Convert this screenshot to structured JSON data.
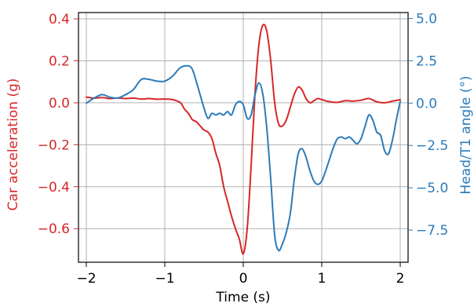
{
  "chart_data": {
    "type": "line",
    "title": "",
    "xlabel": "Time (s)",
    "ylabel_left": "Car acceleration (g)",
    "ylabel_right": "Head/T1 angle (°)",
    "xlim": [
      -2.1,
      2.1
    ],
    "ylim_left": [
      -0.76,
      0.43
    ],
    "ylim_right": [
      -9.4,
      5.35
    ],
    "x_ticks": [
      -2,
      -1,
      0,
      1,
      2
    ],
    "x_tick_labels": [
      "−2",
      "−1",
      "0",
      "1",
      "2"
    ],
    "y_left_ticks": [
      0.4,
      0.2,
      0.0,
      -0.2,
      -0.4,
      -0.6
    ],
    "y_left_tick_labels": [
      "0.4",
      "0.2",
      "0.0",
      "−0.2",
      "−0.4",
      "−0.6"
    ],
    "y_right_ticks": [
      5.0,
      2.5,
      0.0,
      -2.5,
      -5.0,
      -7.5
    ],
    "y_right_tick_labels": [
      "5.0",
      "2.5",
      "0.0",
      "−2.5",
      "−5.0",
      "−7.5"
    ],
    "grid": true,
    "series": [
      {
        "axis": "left",
        "color": "#d62728",
        "points": [
          [
            -2.0,
            0.027
          ],
          [
            -1.9,
            0.022
          ],
          [
            -1.8,
            0.025
          ],
          [
            -1.7,
            0.02
          ],
          [
            -1.6,
            0.023
          ],
          [
            -1.5,
            0.02
          ],
          [
            -1.4,
            0.022
          ],
          [
            -1.3,
            0.018
          ],
          [
            -1.2,
            0.02
          ],
          [
            -1.1,
            0.017
          ],
          [
            -1.0,
            0.018
          ],
          [
            -0.9,
            0.015
          ],
          [
            -0.8,
            0.0
          ],
          [
            -0.75,
            -0.03
          ],
          [
            -0.7,
            -0.05
          ],
          [
            -0.65,
            -0.08
          ],
          [
            -0.6,
            -0.09
          ],
          [
            -0.55,
            -0.11
          ],
          [
            -0.5,
            -0.13
          ],
          [
            -0.45,
            -0.14
          ],
          [
            -0.4,
            -0.17
          ],
          [
            -0.35,
            -0.24
          ],
          [
            -0.3,
            -0.3
          ],
          [
            -0.25,
            -0.4
          ],
          [
            -0.2,
            -0.47
          ],
          [
            -0.15,
            -0.54
          ],
          [
            -0.1,
            -0.6
          ],
          [
            -0.05,
            -0.65
          ],
          [
            0.0,
            -0.72
          ],
          [
            0.05,
            -0.6
          ],
          [
            0.1,
            -0.3
          ],
          [
            0.15,
            0.05
          ],
          [
            0.2,
            0.28
          ],
          [
            0.25,
            0.37
          ],
          [
            0.3,
            0.34
          ],
          [
            0.35,
            0.2
          ],
          [
            0.4,
            0.0
          ],
          [
            0.45,
            -0.1
          ],
          [
            0.5,
            -0.11
          ],
          [
            0.55,
            -0.08
          ],
          [
            0.6,
            -0.02
          ],
          [
            0.65,
            0.04
          ],
          [
            0.7,
            0.075
          ],
          [
            0.75,
            0.06
          ],
          [
            0.8,
            0.02
          ],
          [
            0.85,
            0.0
          ],
          [
            0.9,
            0.01
          ],
          [
            0.95,
            0.02
          ],
          [
            1.0,
            0.015
          ],
          [
            1.1,
            0.005
          ],
          [
            1.2,
            0.002
          ],
          [
            1.3,
            0.01
          ],
          [
            1.4,
            0.008
          ],
          [
            1.5,
            0.012
          ],
          [
            1.6,
            0.02
          ],
          [
            1.7,
            0.005
          ],
          [
            1.8,
            0.0
          ],
          [
            1.9,
            0.008
          ],
          [
            2.0,
            0.015
          ]
        ]
      },
      {
        "axis": "right",
        "color": "#2b7bba",
        "points": [
          [
            -2.0,
            0.0
          ],
          [
            -1.9,
            0.3
          ],
          [
            -1.8,
            0.5
          ],
          [
            -1.7,
            0.35
          ],
          [
            -1.6,
            0.3
          ],
          [
            -1.5,
            0.5
          ],
          [
            -1.4,
            0.8
          ],
          [
            -1.3,
            1.4
          ],
          [
            -1.2,
            1.4
          ],
          [
            -1.1,
            1.3
          ],
          [
            -1.0,
            1.3
          ],
          [
            -0.9,
            1.6
          ],
          [
            -0.8,
            2.1
          ],
          [
            -0.7,
            2.2
          ],
          [
            -0.65,
            2.0
          ],
          [
            -0.6,
            1.3
          ],
          [
            -0.55,
            0.5
          ],
          [
            -0.5,
            -0.3
          ],
          [
            -0.45,
            -0.9
          ],
          [
            -0.4,
            -0.6
          ],
          [
            -0.35,
            -0.7
          ],
          [
            -0.3,
            -0.6
          ],
          [
            -0.25,
            -0.7
          ],
          [
            -0.2,
            -0.5
          ],
          [
            -0.15,
            -0.7
          ],
          [
            -0.1,
            -0.1
          ],
          [
            -0.05,
            0.1
          ],
          [
            0.0,
            -0.1
          ],
          [
            0.05,
            -0.9
          ],
          [
            0.1,
            -0.7
          ],
          [
            0.15,
            0.5
          ],
          [
            0.2,
            1.2
          ],
          [
            0.25,
            0.5
          ],
          [
            0.3,
            -1.5
          ],
          [
            0.35,
            -4.5
          ],
          [
            0.4,
            -7.8
          ],
          [
            0.45,
            -8.7
          ],
          [
            0.5,
            -8.3
          ],
          [
            0.55,
            -7.6
          ],
          [
            0.6,
            -6.5
          ],
          [
            0.65,
            -4.5
          ],
          [
            0.7,
            -3.0
          ],
          [
            0.75,
            -2.7
          ],
          [
            0.8,
            -3.2
          ],
          [
            0.85,
            -4.0
          ],
          [
            0.9,
            -4.6
          ],
          [
            0.95,
            -4.8
          ],
          [
            1.0,
            -4.6
          ],
          [
            1.05,
            -4.0
          ],
          [
            1.1,
            -3.3
          ],
          [
            1.15,
            -2.6
          ],
          [
            1.2,
            -2.1
          ],
          [
            1.25,
            -2.0
          ],
          [
            1.3,
            -2.1
          ],
          [
            1.35,
            -2.0
          ],
          [
            1.4,
            -2.2
          ],
          [
            1.45,
            -2.4
          ],
          [
            1.5,
            -2.1
          ],
          [
            1.55,
            -1.4
          ],
          [
            1.6,
            -0.7
          ],
          [
            1.65,
            -1.0
          ],
          [
            1.7,
            -1.7
          ],
          [
            1.75,
            -1.9
          ],
          [
            1.8,
            -2.8
          ],
          [
            1.85,
            -3.0
          ],
          [
            1.9,
            -2.2
          ],
          [
            1.95,
            -1.0
          ],
          [
            2.0,
            0.1
          ]
        ]
      }
    ]
  },
  "colors": {
    "left_axis": "#d62728",
    "right_axis": "#2b7bba",
    "grid": "#b0b0b0",
    "frame": "#000000"
  }
}
